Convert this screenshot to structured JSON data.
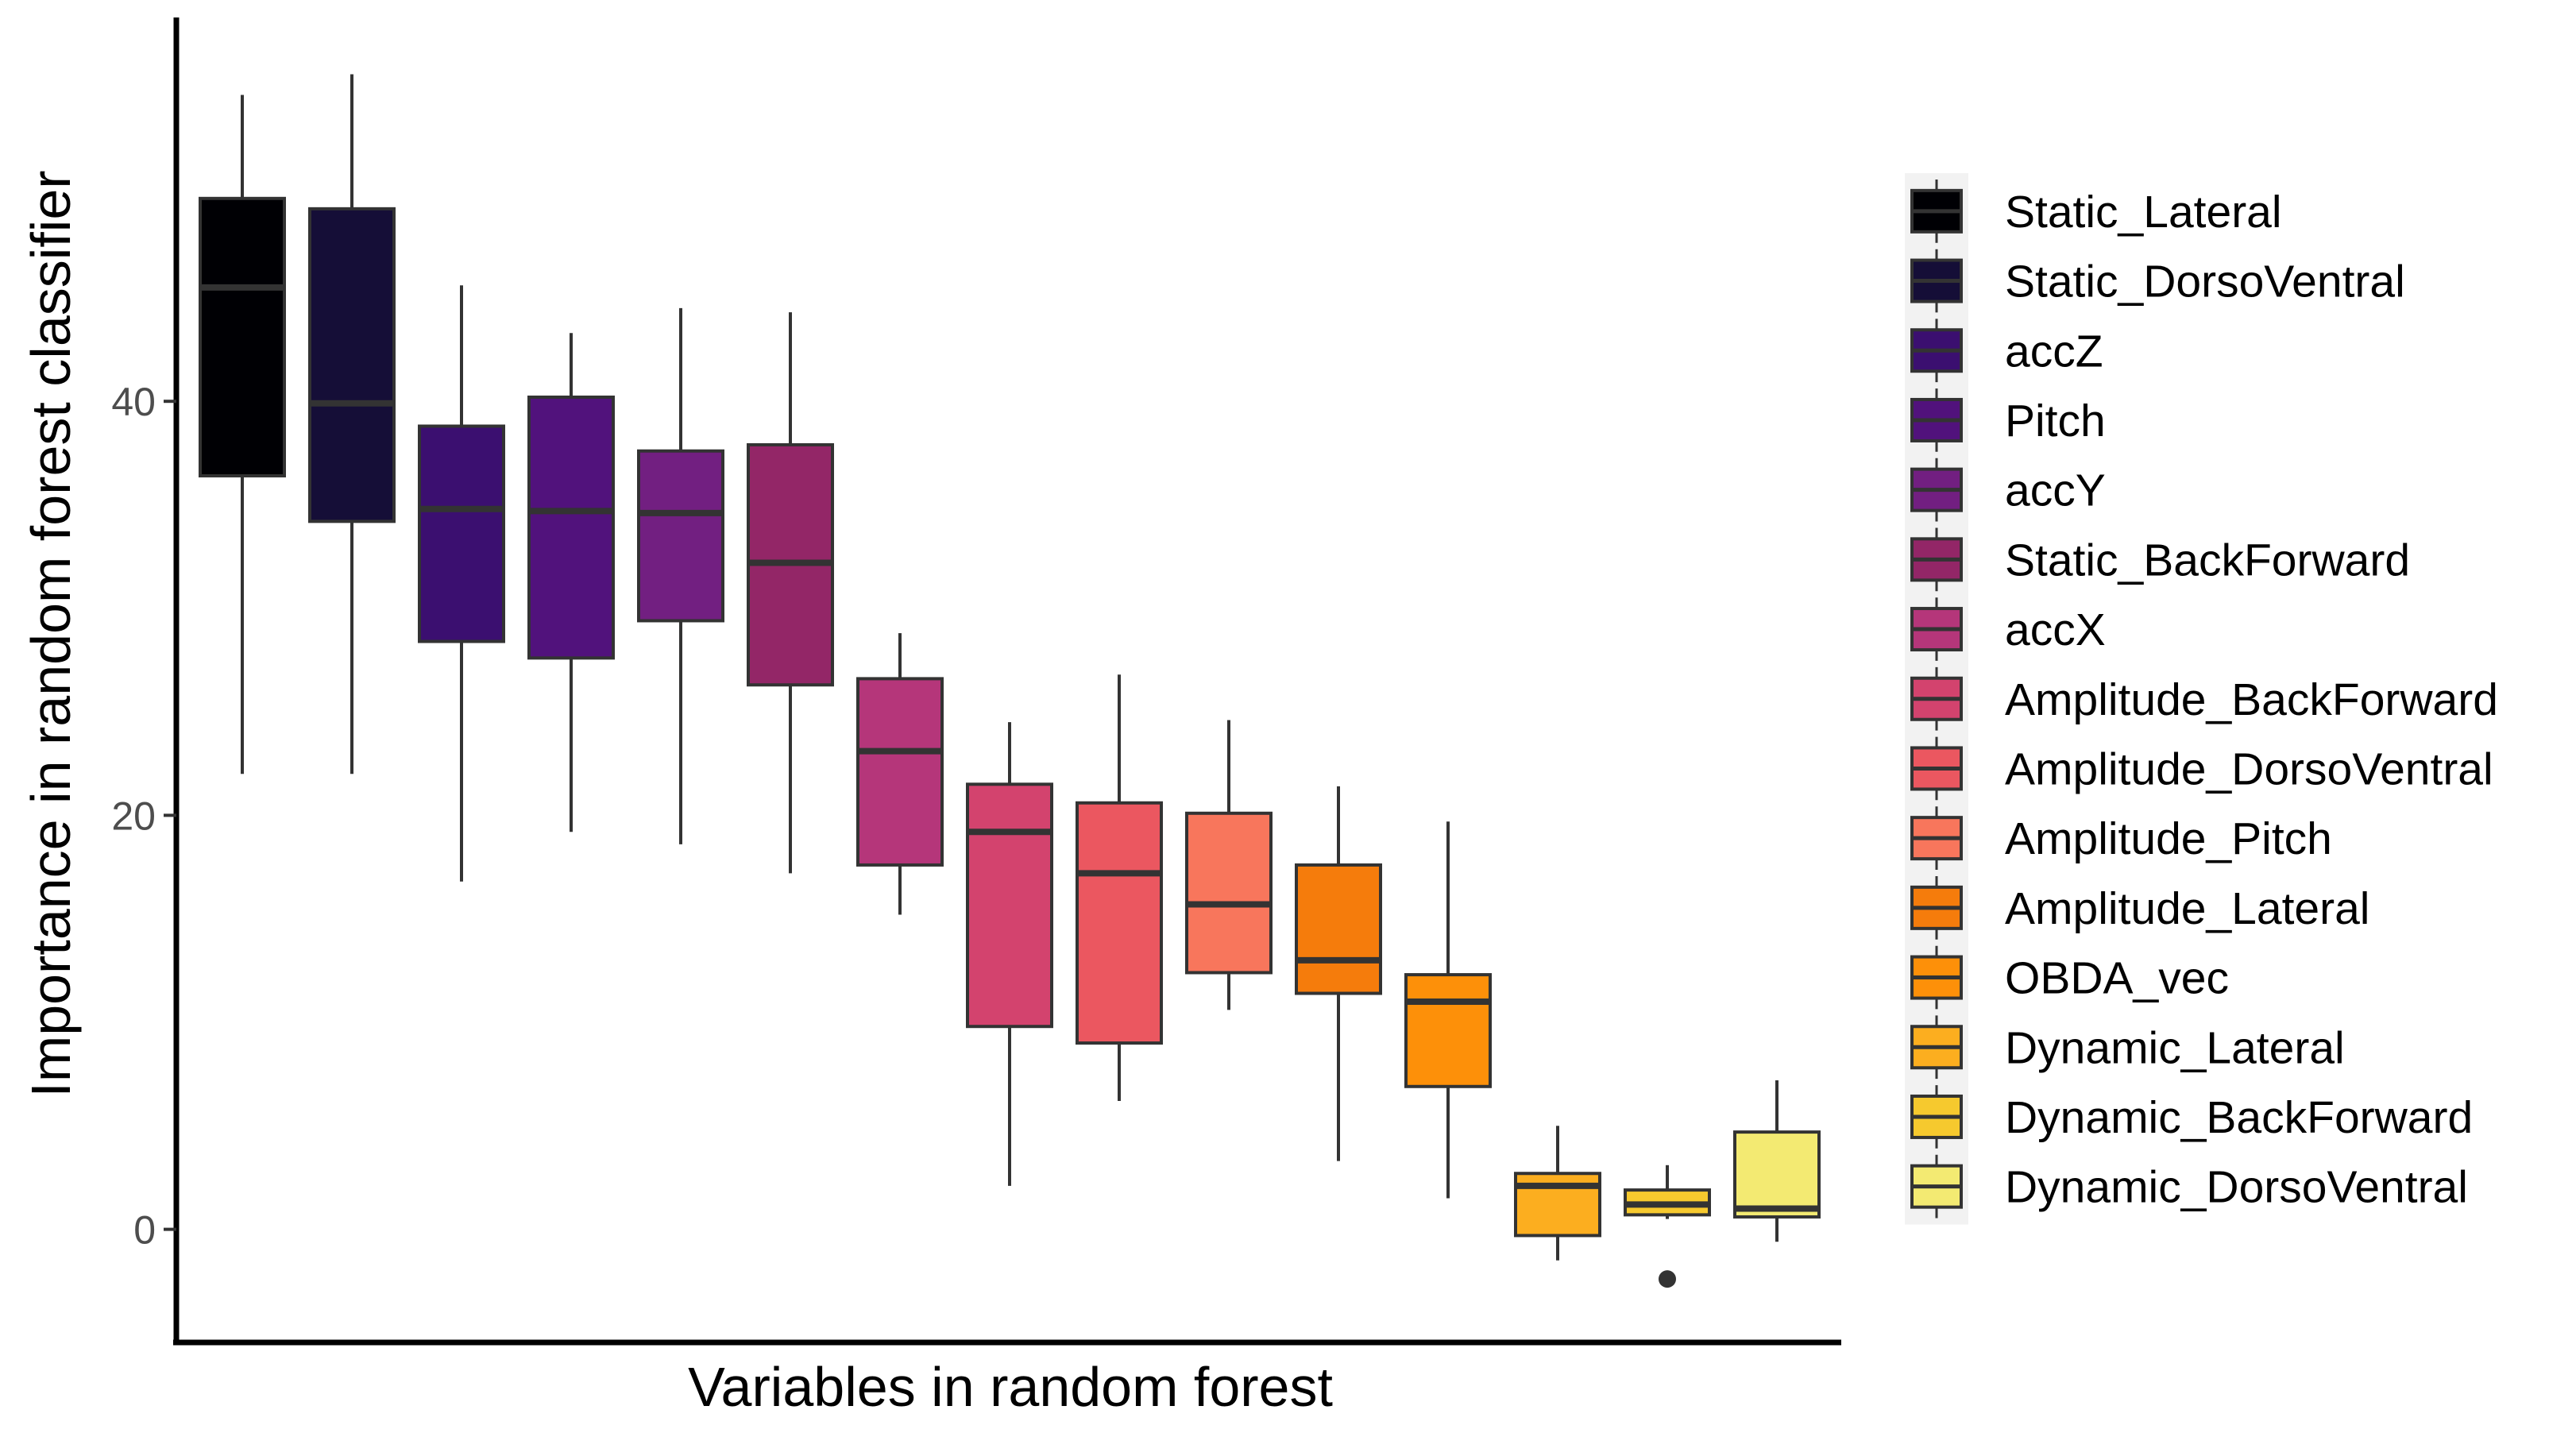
{
  "chart_data": {
    "type": "boxplot",
    "title": "",
    "xlabel": "Variables in random forest",
    "ylabel": "Importance in random forest classifier",
    "ylim": [
      -4.5,
      58
    ],
    "yticks": [
      0,
      20,
      40
    ],
    "grid": false,
    "legend_position": "right",
    "categories": [
      "Static_Lateral",
      "Static_DorsoVentral",
      "accZ",
      "Pitch",
      "accY",
      "Static_BackForward",
      "accX",
      "Amplitude_BackForward",
      "Amplitude_DorsoVentral",
      "Amplitude_Pitch",
      "Amplitude_Lateral",
      "OBDA_vec",
      "Dynamic_Lateral",
      "Dynamic_BackForward",
      "Dynamic_DorsoVentral"
    ],
    "series": [
      {
        "name": "Static_Lateral",
        "color": "#000004",
        "whisker_low": 22.0,
        "q1": 36.4,
        "median": 45.5,
        "q3": 49.8,
        "whisker_high": 54.8,
        "outliers": []
      },
      {
        "name": "Static_DorsoVentral",
        "color": "#150E37",
        "whisker_low": 22.0,
        "q1": 34.2,
        "median": 39.9,
        "q3": 49.3,
        "whisker_high": 55.8,
        "outliers": []
      },
      {
        "name": "accZ",
        "color": "#3B0F70",
        "whisker_low": 16.8,
        "q1": 28.4,
        "median": 34.8,
        "q3": 38.8,
        "whisker_high": 45.6,
        "outliers": []
      },
      {
        "name": "Pitch",
        "color": "#51127C",
        "whisker_low": 19.2,
        "q1": 27.6,
        "median": 34.7,
        "q3": 40.2,
        "whisker_high": 43.3,
        "outliers": []
      },
      {
        "name": "accY",
        "color": "#721F81",
        "whisker_low": 18.6,
        "q1": 29.4,
        "median": 34.6,
        "q3": 37.6,
        "whisker_high": 44.5,
        "outliers": []
      },
      {
        "name": "Static_BackForward",
        "color": "#932667",
        "whisker_low": 17.2,
        "q1": 26.3,
        "median": 32.2,
        "q3": 37.9,
        "whisker_high": 44.3,
        "outliers": []
      },
      {
        "name": "accX",
        "color": "#B5367A",
        "whisker_low": 15.2,
        "q1": 17.6,
        "median": 23.1,
        "q3": 26.6,
        "whisker_high": 28.8,
        "outliers": []
      },
      {
        "name": "Amplitude_BackForward",
        "color": "#D3436E",
        "whisker_low": 2.1,
        "q1": 9.8,
        "median": 19.2,
        "q3": 21.5,
        "whisker_high": 24.5,
        "outliers": []
      },
      {
        "name": "Amplitude_DorsoVentral",
        "color": "#EB5760",
        "whisker_low": 6.2,
        "q1": 9.0,
        "median": 17.2,
        "q3": 20.6,
        "whisker_high": 26.8,
        "outliers": []
      },
      {
        "name": "Amplitude_Pitch",
        "color": "#F8765C",
        "whisker_low": 10.6,
        "q1": 12.4,
        "median": 15.7,
        "q3": 20.1,
        "whisker_high": 24.6,
        "outliers": []
      },
      {
        "name": "Amplitude_Lateral",
        "color": "#F57C0C",
        "whisker_low": 3.3,
        "q1": 11.4,
        "median": 13.0,
        "q3": 17.6,
        "whisker_high": 21.4,
        "outliers": []
      },
      {
        "name": "OBDA_vec",
        "color": "#FD9009",
        "whisker_low": 1.5,
        "q1": 6.9,
        "median": 11.0,
        "q3": 12.3,
        "whisker_high": 19.7,
        "outliers": []
      },
      {
        "name": "Dynamic_Lateral",
        "color": "#FCAE1F",
        "whisker_low": -1.5,
        "q1": -0.3,
        "median": 2.1,
        "q3": 2.7,
        "whisker_high": 5.0,
        "outliers": []
      },
      {
        "name": "Dynamic_BackForward",
        "color": "#F6C92E",
        "whisker_low": 0.5,
        "q1": 0.7,
        "median": 1.2,
        "q3": 1.9,
        "whisker_high": 3.1,
        "outliers": [
          -2.4
        ]
      },
      {
        "name": "Dynamic_DorsoVentral",
        "color": "#F3EA72",
        "whisker_low": -0.6,
        "q1": 0.6,
        "median": 1.0,
        "q3": 4.7,
        "whisker_high": 7.2,
        "outliers": []
      }
    ]
  }
}
